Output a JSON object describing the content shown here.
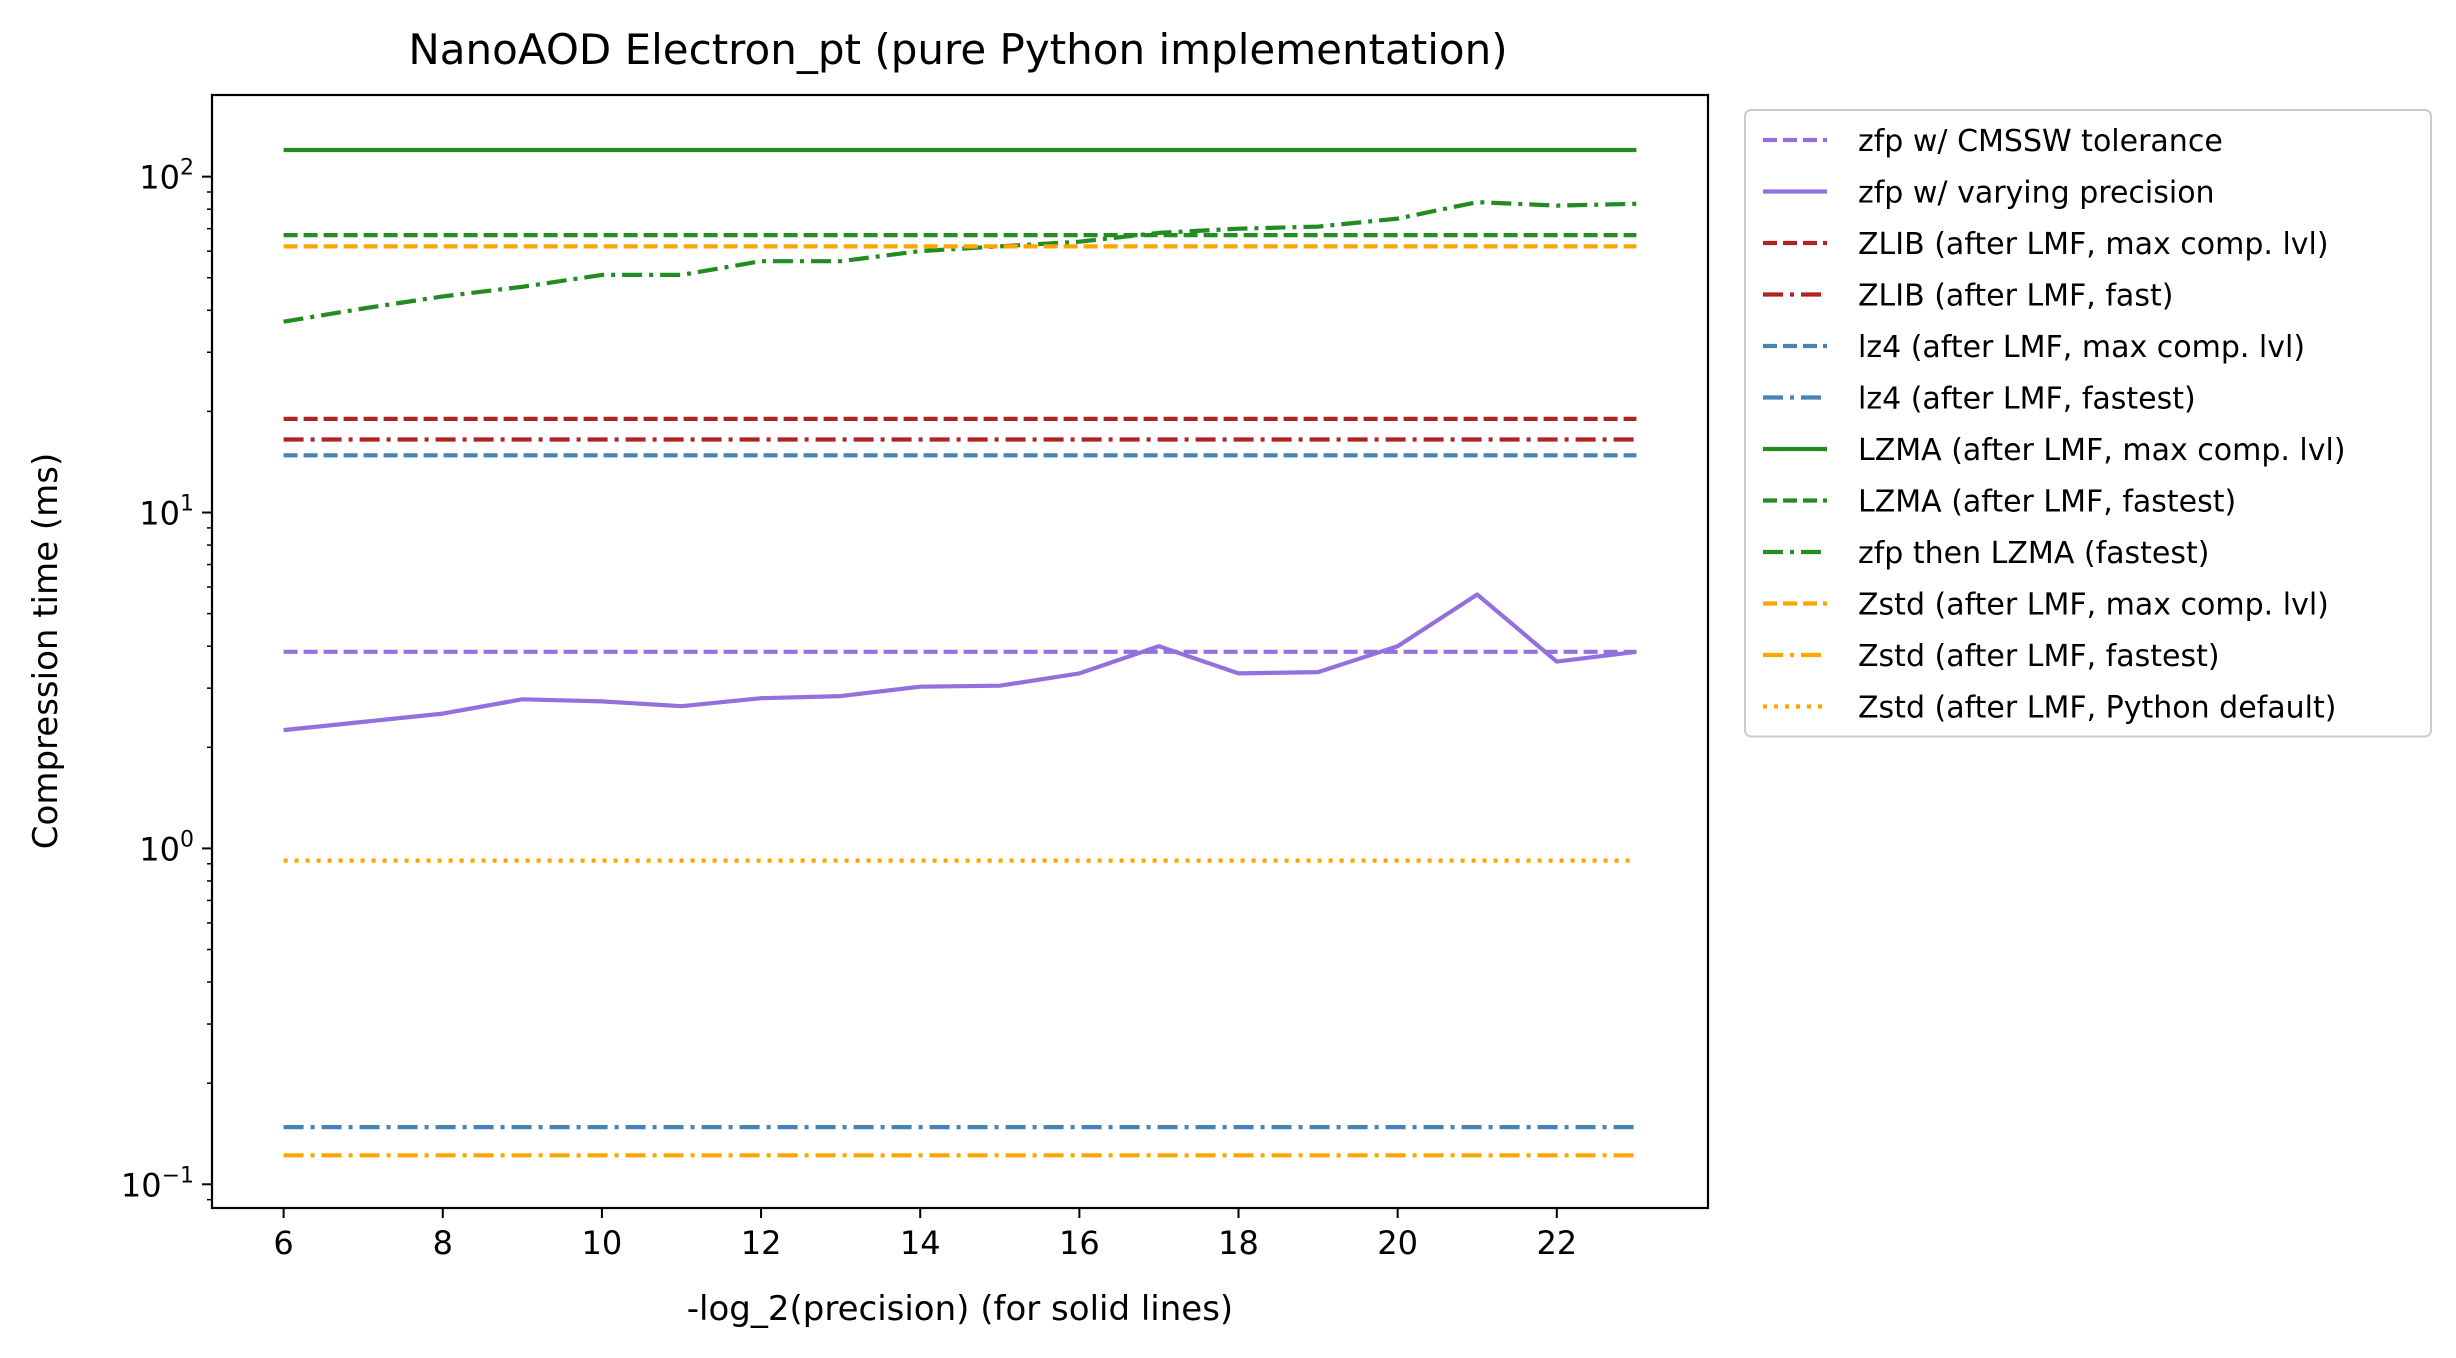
{
  "chart_data": {
    "type": "line",
    "title": "NanoAOD Electron_pt (pure Python implementation)",
    "xlabel": "-log_2(precision) (for solid lines)",
    "ylabel": "Compression time (ms)",
    "xlim": [
      5.1,
      23.9
    ],
    "ylim": [
      0.085,
      175
    ],
    "y_scale": "log",
    "grid": false,
    "legend_location": "outside-upper-right",
    "xticks": [
      6,
      8,
      10,
      12,
      14,
      16,
      18,
      20,
      22
    ],
    "yticks": [
      {
        "value": 0.1,
        "base": "10",
        "exp": "−1"
      },
      {
        "value": 1,
        "base": "10",
        "exp": "0"
      },
      {
        "value": 10,
        "base": "10",
        "exp": "1"
      },
      {
        "value": 100,
        "base": "10",
        "exp": "2"
      }
    ],
    "x": [
      6,
      7,
      8,
      9,
      10,
      11,
      12,
      13,
      14,
      15,
      16,
      17,
      18,
      19,
      20,
      21,
      22,
      23
    ],
    "series": [
      {
        "name": "zfp w/ CMSSW tolerance",
        "color": "#9370db",
        "style": "dashed",
        "values": [
          3.85,
          3.85,
          3.85,
          3.85,
          3.85,
          3.85,
          3.85,
          3.85,
          3.85,
          3.85,
          3.85,
          3.85,
          3.85,
          3.85,
          3.85,
          3.85,
          3.85,
          3.85
        ]
      },
      {
        "name": "zfp w/ varying precision",
        "color": "#9370db",
        "style": "solid",
        "values": [
          2.25,
          2.38,
          2.52,
          2.78,
          2.74,
          2.65,
          2.8,
          2.84,
          3.03,
          3.05,
          3.32,
          4.0,
          3.32,
          3.35,
          4.0,
          5.7,
          3.6,
          3.85
        ]
      },
      {
        "name": "ZLIB (after LMF, max comp. lvl)",
        "color": "#b22222",
        "style": "dashed",
        "values": [
          19.0,
          19.0,
          19.0,
          19.0,
          19.0,
          19.0,
          19.0,
          19.0,
          19.0,
          19.0,
          19.0,
          19.0,
          19.0,
          19.0,
          19.0,
          19.0,
          19.0,
          19.0
        ]
      },
      {
        "name": "ZLIB (after LMF, fast)",
        "color": "#b22222",
        "style": "dashdot",
        "values": [
          16.5,
          16.5,
          16.5,
          16.5,
          16.5,
          16.5,
          16.5,
          16.5,
          16.5,
          16.5,
          16.5,
          16.5,
          16.5,
          16.5,
          16.5,
          16.5,
          16.5,
          16.5
        ]
      },
      {
        "name": "lz4 (after LMF, max comp. lvl)",
        "color": "#4682b4",
        "style": "dashed",
        "values": [
          14.8,
          14.8,
          14.8,
          14.8,
          14.8,
          14.8,
          14.8,
          14.8,
          14.8,
          14.8,
          14.8,
          14.8,
          14.8,
          14.8,
          14.8,
          14.8,
          14.8,
          14.8
        ]
      },
      {
        "name": "lz4 (after LMF, fastest)",
        "color": "#4682b4",
        "style": "dashdot",
        "values": [
          0.148,
          0.148,
          0.148,
          0.148,
          0.148,
          0.148,
          0.148,
          0.148,
          0.148,
          0.148,
          0.148,
          0.148,
          0.148,
          0.148,
          0.148,
          0.148,
          0.148,
          0.148
        ]
      },
      {
        "name": "LZMA (after LMF, max comp. lvl)",
        "color": "#228b22",
        "style": "solid",
        "values": [
          120,
          120,
          120,
          120,
          120,
          120,
          120,
          120,
          120,
          120,
          120,
          120,
          120,
          120,
          120,
          120,
          120,
          120
        ]
      },
      {
        "name": "LZMA (after LMF, fastest)",
        "color": "#228b22",
        "style": "dashed",
        "values": [
          67,
          67,
          67,
          67,
          67,
          67,
          67,
          67,
          67,
          67,
          67,
          67,
          67,
          67,
          67,
          67,
          67,
          67
        ]
      },
      {
        "name": "zfp then LZMA (fastest)",
        "color": "#228b22",
        "style": "dashdot",
        "values": [
          37,
          40.5,
          44,
          47,
          51,
          51,
          56,
          56,
          60,
          62,
          64,
          68,
          70,
          71,
          75,
          84,
          82,
          83
        ]
      },
      {
        "name": "Zstd (after LMF, max comp. lvl)",
        "color": "#ffa500",
        "style": "dashed",
        "values": [
          62,
          62,
          62,
          62,
          62,
          62,
          62,
          62,
          62,
          62,
          62,
          62,
          62,
          62,
          62,
          62,
          62,
          62
        ]
      },
      {
        "name": "Zstd (after LMF, fastest)",
        "color": "#ffa500",
        "style": "dashdot",
        "values": [
          0.122,
          0.122,
          0.122,
          0.122,
          0.122,
          0.122,
          0.122,
          0.122,
          0.122,
          0.122,
          0.122,
          0.122,
          0.122,
          0.122,
          0.122,
          0.122,
          0.122,
          0.122
        ]
      },
      {
        "name": "Zstd (after LMF, Python default)",
        "color": "#ffa500",
        "style": "dotted",
        "values": [
          0.92,
          0.92,
          0.92,
          0.92,
          0.92,
          0.92,
          0.92,
          0.92,
          0.92,
          0.92,
          0.92,
          0.92,
          0.92,
          0.92,
          0.92,
          0.92,
          0.92,
          0.92
        ]
      }
    ]
  }
}
